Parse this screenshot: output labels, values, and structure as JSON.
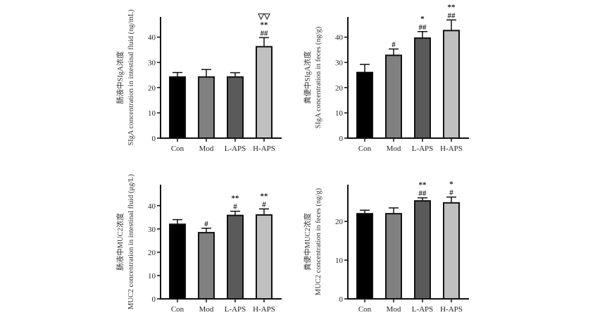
{
  "chart_data": [
    {
      "type": "bar",
      "panel": "top-left",
      "categories": [
        "Con",
        "Mod",
        "L-APS",
        "H-APS"
      ],
      "values": [
        24.2,
        24.2,
        24.2,
        36.2
      ],
      "errors": [
        1.8,
        3.0,
        1.7,
        3.6
      ],
      "colors": [
        "#000000",
        "#808080",
        "#5a5a5a",
        "#c0c0c0"
      ],
      "annotations": [
        [],
        [],
        [],
        [
          "##",
          "**",
          "▽▽"
        ]
      ],
      "ylabel_cn": "肠液中SIgA浓度",
      "ylabel_en": "SIgA concentration in intestinal fluid (ng/mL)",
      "yticks": [
        0,
        10,
        20,
        30,
        40
      ],
      "ylim": [
        0,
        48
      ]
    },
    {
      "type": "bar",
      "panel": "top-right",
      "categories": [
        "Con",
        "Mod",
        "L-APS",
        "H-APS"
      ],
      "values": [
        26.0,
        32.8,
        39.6,
        42.6
      ],
      "errors": [
        3.2,
        2.5,
        2.6,
        4.2
      ],
      "colors": [
        "#000000",
        "#808080",
        "#5a5a5a",
        "#c0c0c0"
      ],
      "annotations": [
        [],
        [
          "#"
        ],
        [
          "##",
          "*"
        ],
        [
          "##",
          "**"
        ]
      ],
      "ylabel_cn": "粪便中SIgA浓度",
      "ylabel_en": "SIgA concentration in feces (ng/g)",
      "yticks": [
        0,
        10,
        20,
        30,
        40
      ],
      "ylim": [
        0,
        48
      ]
    },
    {
      "type": "bar",
      "panel": "bottom-left",
      "categories": [
        "Con",
        "Mod",
        "L-APS",
        "H-APS"
      ],
      "values": [
        32.0,
        28.4,
        35.8,
        36.0
      ],
      "errors": [
        2.0,
        1.9,
        1.8,
        2.6
      ],
      "colors": [
        "#000000",
        "#808080",
        "#5a5a5a",
        "#c0c0c0"
      ],
      "annotations": [
        [],
        [
          "#"
        ],
        [
          "#",
          "**"
        ],
        [
          "#",
          "**"
        ]
      ],
      "ylabel_cn": "肠液中MUC2浓度",
      "ylabel_en": "MUC2 concentration in intestinal fluid (μg/L)",
      "yticks": [
        0,
        10,
        20,
        30,
        40
      ],
      "ylim": [
        0,
        49
      ]
    },
    {
      "type": "bar",
      "panel": "bottom-right",
      "categories": [
        "Con",
        "Mod",
        "L-APS",
        "H-APS"
      ],
      "values": [
        22.0,
        22.0,
        25.3,
        24.8
      ],
      "errors": [
        0.9,
        1.5,
        0.8,
        1.5
      ],
      "colors": [
        "#000000",
        "#808080",
        "#5a5a5a",
        "#c0c0c0"
      ],
      "annotations": [
        [],
        [],
        [
          "##",
          "**"
        ],
        [
          "#",
          "*"
        ]
      ],
      "ylabel_cn": "粪便中MUC2浓度",
      "ylabel_en": "MUC2 concentration in feces (ng/g)",
      "yticks": [
        0,
        10,
        20
      ],
      "ylim": [
        0,
        29.5
      ]
    }
  ]
}
